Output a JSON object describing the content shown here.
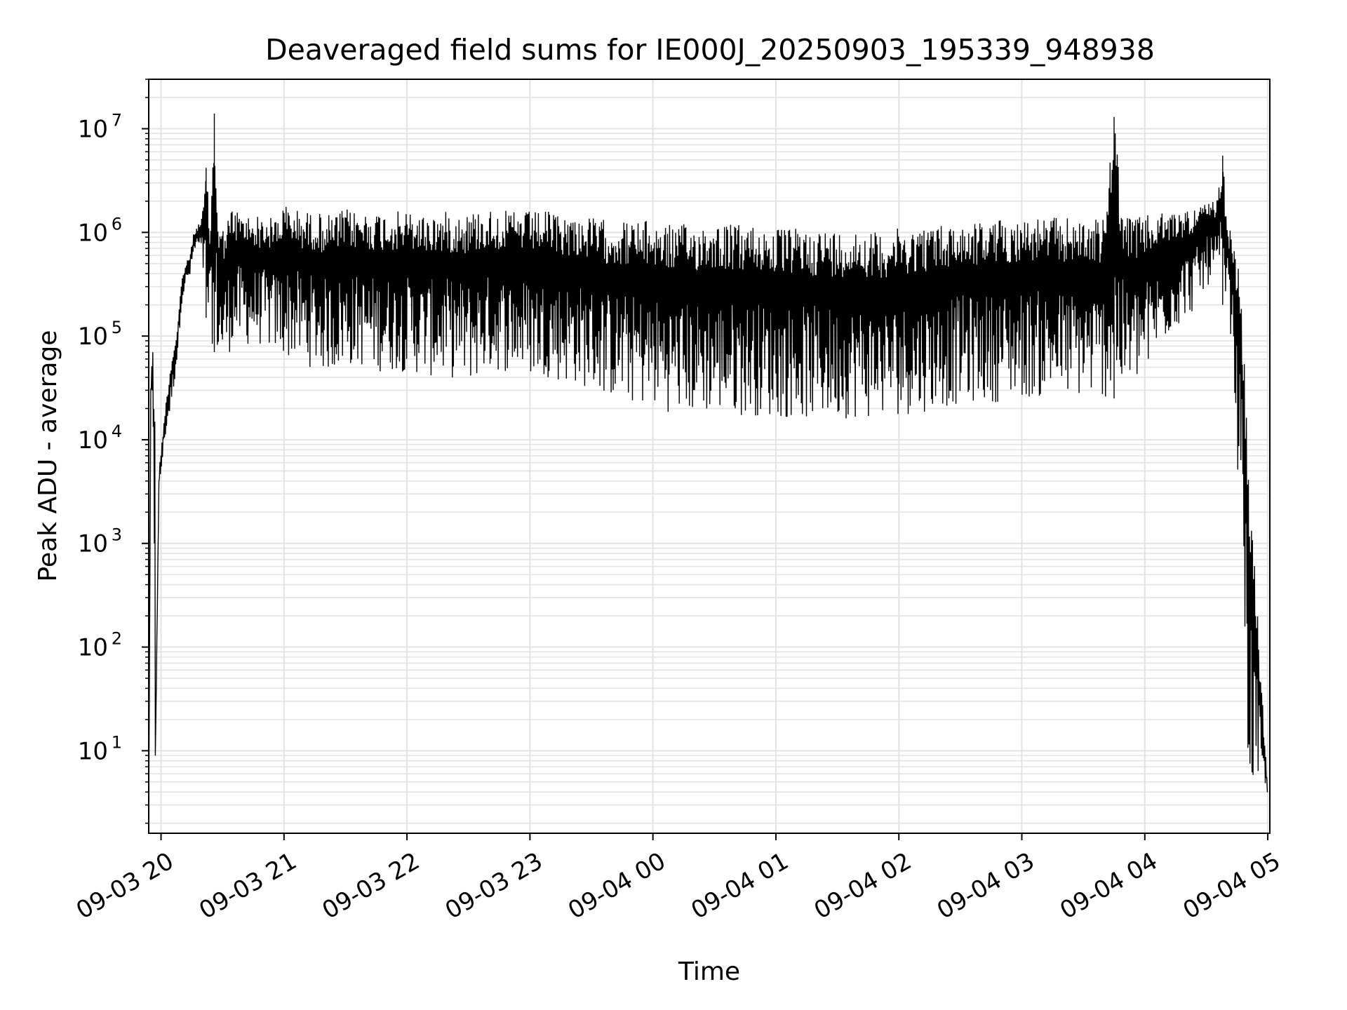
{
  "chart_data": {
    "type": "line",
    "title": "Deaveraged field sums for IE000J_20250903_195339_948938",
    "xlabel": "Time",
    "ylabel": "Peak ADU - average",
    "yscale": "log",
    "ylim": [
      1.6,
      30000000
    ],
    "xlim": [
      "09-03 19:54",
      "09-04 05:01"
    ],
    "grid": true,
    "line_color": "#000000",
    "x_ticks": [
      "09-03 20",
      "09-03 21",
      "09-03 22",
      "09-03 23",
      "09-04 00",
      "09-04 01",
      "09-04 02",
      "09-04 03",
      "09-04 04",
      "09-04 05"
    ],
    "y_ticks": [
      {
        "value": 10,
        "base": "10",
        "exp": "1"
      },
      {
        "value": 100,
        "base": "10",
        "exp": "2"
      },
      {
        "value": 1000,
        "base": "10",
        "exp": "3"
      },
      {
        "value": 10000,
        "base": "10",
        "exp": "4"
      },
      {
        "value": 100000,
        "base": "10",
        "exp": "5"
      },
      {
        "value": 1000000,
        "base": "10",
        "exp": "6"
      },
      {
        "value": 10000000,
        "base": "10",
        "exp": "7"
      }
    ],
    "series": [
      {
        "x": [
          "09-03 19:54",
          "09-03 19:55",
          "09-03 19:56",
          "09-03 19:57",
          "09-03 19:57",
          "09-03 19:59",
          "09-03 20:02",
          "09-03 20:05",
          "09-03 20:08",
          "09-03 20:10",
          "09-03 20:12",
          "09-03 20:14",
          "09-03 20:16",
          "09-03 20:18",
          "09-03 20:20",
          "09-03 20:22",
          "09-03 20:24",
          "09-03 20:26",
          "09-03 20:28",
          "09-03 20:30",
          "09-03 20:35",
          "09-03 20:40",
          "09-03 20:45",
          "09-03 20:50",
          "09-03 20:55",
          "09-03 21:00",
          "09-03 21:05",
          "09-03 21:10",
          "09-03 21:15",
          "09-03 21:20",
          "09-03 21:25",
          "09-03 21:30",
          "09-03 21:35",
          "09-03 21:40",
          "09-03 21:45",
          "09-03 21:50",
          "09-03 21:55",
          "09-03 22:00",
          "09-03 22:10",
          "09-03 22:20",
          "09-03 22:30",
          "09-03 22:40",
          "09-03 22:50",
          "09-03 23:00",
          "09-03 23:10",
          "09-03 23:15",
          "09-03 23:20",
          "09-03 23:30",
          "09-03 23:40",
          "09-03 23:50",
          "09-04 00:00",
          "09-04 00:10",
          "09-04 00:20",
          "09-04 00:30",
          "09-04 00:40",
          "09-04 00:50",
          "09-04 01:00",
          "09-04 01:10",
          "09-04 01:20",
          "09-04 01:30",
          "09-04 01:40",
          "09-04 01:50",
          "09-04 02:00",
          "09-04 02:10",
          "09-04 02:20",
          "09-04 02:30",
          "09-04 02:40",
          "09-04 02:50",
          "09-04 03:00",
          "09-04 03:10",
          "09-04 03:20",
          "09-04 03:30",
          "09-04 03:40",
          "09-04 03:45",
          "09-04 03:50",
          "09-04 04:00",
          "09-04 04:10",
          "09-04 04:20",
          "09-04 04:25",
          "09-04 04:30",
          "09-04 04:35",
          "09-04 04:38",
          "09-04 04:40",
          "09-04 04:42",
          "09-04 04:44",
          "09-04 04:46",
          "09-04 04:48",
          "09-04 04:50",
          "09-04 05:00"
        ],
        "high": [
          2,
          40000,
          90000,
          30000,
          4,
          5000,
          20000,
          60000,
          120000,
          350000,
          500000,
          600000,
          1000000,
          1200000,
          1400000,
          4200000,
          1100000,
          14000000,
          1200000,
          1100000,
          1800000,
          1500000,
          1500000,
          1400000,
          1400000,
          1900000,
          1700000,
          1600000,
          1600000,
          1500000,
          1500000,
          1700000,
          1600000,
          1600000,
          1600000,
          1600000,
          1600000,
          1600000,
          1500000,
          1600000,
          1600000,
          1700000,
          1600000,
          1600000,
          1600000,
          1500000,
          1500000,
          1400000,
          1300000,
          1300000,
          1300000,
          1200000,
          1200000,
          1300000,
          1200000,
          1200000,
          1100000,
          1100000,
          1100000,
          1050000,
          1100000,
          1000000,
          1100000,
          1150000,
          1200000,
          1250000,
          1300000,
          1350000,
          1400000,
          1400000,
          1400000,
          1350000,
          1350000,
          13000000,
          1400000,
          1450000,
          1550000,
          1650000,
          1800000,
          1900000,
          2000000,
          5500000,
          1500000,
          1000000,
          700000,
          450000,
          100000,
          12000,
          4
        ],
        "low": [
          2,
          20000,
          30000,
          5,
          4,
          3000,
          10000,
          20000,
          60000,
          200000,
          300000,
          350000,
          600000,
          700000,
          500000,
          150000,
          100000,
          70000,
          60000,
          50000,
          80000,
          80000,
          80000,
          80000,
          70000,
          60000,
          60000,
          50000,
          50000,
          45000,
          45000,
          50000,
          50000,
          50000,
          45000,
          45000,
          45000,
          45000,
          40000,
          40000,
          35000,
          45000,
          45000,
          40000,
          40000,
          35000,
          35000,
          30000,
          25000,
          22000,
          20000,
          18000,
          17000,
          18000,
          17000,
          17000,
          16000,
          16000,
          15000,
          16000,
          16000,
          16000,
          17000,
          18000,
          20000,
          22000,
          23000,
          23000,
          25000,
          25000,
          25000,
          25000,
          25000,
          25000,
          28000,
          40000,
          90000,
          150000,
          180000,
          300000,
          350000,
          200000,
          200000,
          100000,
          15000,
          3000,
          1500,
          4,
          4
        ]
      }
    ]
  }
}
